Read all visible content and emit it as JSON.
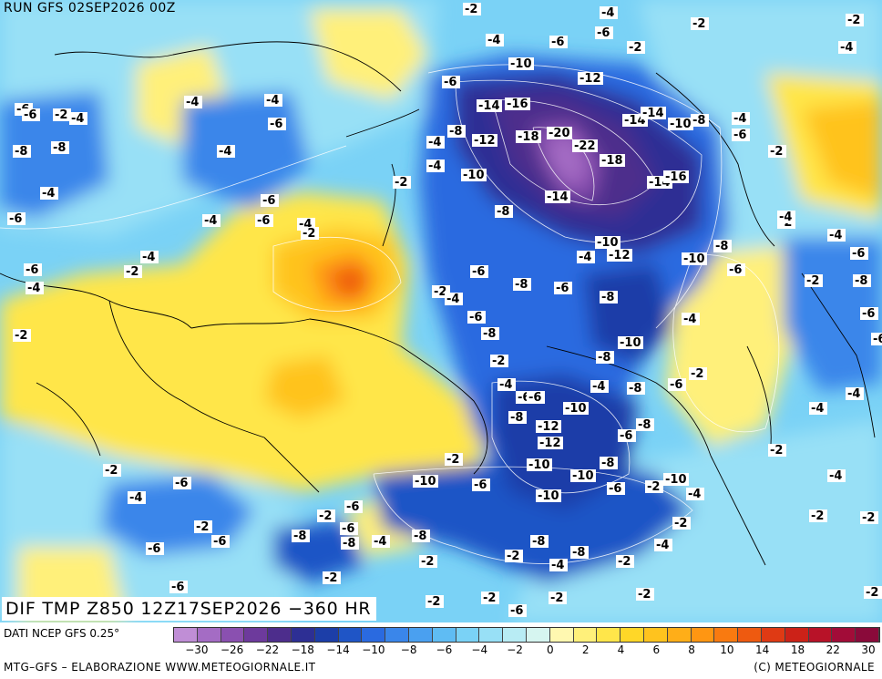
{
  "header": {
    "run_title": "RUN GFS 02SEP2026 00Z"
  },
  "map": {
    "field_title": "DIF TMP Z850 12Z17SEP2026 −360 HR",
    "contour_labels": [
      "-2",
      "-4",
      "-6",
      "-8",
      "-10",
      "-12",
      "-14",
      "-16",
      "-18",
      "-20",
      "-22",
      "-1"
    ]
  },
  "footer": {
    "source": "DATI NCEP GFS 0.25°",
    "credit_left": "MTG–GFS – ELABORAZIONE WWW.METEOGIORNALE.IT",
    "credit_right": "(C) METEOGIORNALE"
  },
  "legend": {
    "ticks": [
      "−30",
      "−26",
      "−22",
      "−18",
      "−14",
      "−10",
      "−8",
      "−6",
      "−4",
      "−2",
      "0",
      "2",
      "4",
      "6",
      "8",
      "10",
      "14",
      "18",
      "22",
      "30"
    ],
    "colors": [
      "#c08ed6",
      "#a46cc4",
      "#8a50b0",
      "#6d3a9c",
      "#4d2d8c",
      "#2d2f94",
      "#1c3ea8",
      "#1f55c6",
      "#2a6ae0",
      "#3a86ea",
      "#4aa0f0",
      "#5fbcf3",
      "#7ad2f6",
      "#98e0f6",
      "#b8ecf4",
      "#d6f5f0",
      "#fff8b0",
      "#fff07a",
      "#ffe64a",
      "#ffd728",
      "#ffc31e",
      "#ffae18",
      "#ff9612",
      "#f97a10",
      "#ee5a10",
      "#df3a14",
      "#cc2218",
      "#b81228",
      "#a20c38",
      "#8a0a3a"
    ]
  },
  "colors": {
    "cold_deep": "#4d2d8c",
    "cold": "#2a6ae0",
    "cool": "#98e0f6",
    "warm": "#ffd728",
    "hot": "#ee5a10"
  }
}
